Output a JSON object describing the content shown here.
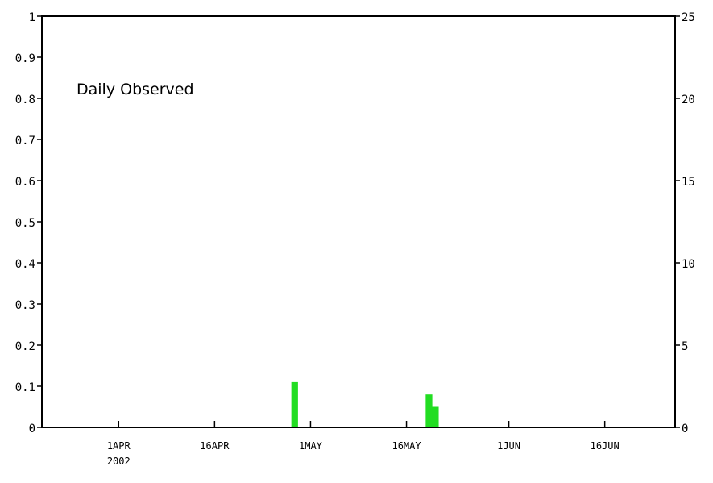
{
  "chart_data": {
    "type": "bar",
    "title": "Daily Observed",
    "colors": {
      "bar": "#22dd22",
      "axis": "#000000"
    },
    "x_axis": {
      "start": "2002-03-20",
      "end": "2002-06-27",
      "ticks": [
        {
          "date": "2002-04-01",
          "label": "1APR",
          "sublabel": "2002"
        },
        {
          "date": "2002-04-16",
          "label": "16APR",
          "sublabel": ""
        },
        {
          "date": "2002-05-01",
          "label": "1MAY",
          "sublabel": ""
        },
        {
          "date": "2002-05-16",
          "label": "16MAY",
          "sublabel": ""
        },
        {
          "date": "2002-06-01",
          "label": "1JUN",
          "sublabel": ""
        },
        {
          "date": "2002-06-16",
          "label": "16JUN",
          "sublabel": ""
        }
      ]
    },
    "y_left": {
      "min": 0,
      "max": 1,
      "ticks": [
        0,
        0.1,
        0.2,
        0.3,
        0.4,
        0.5,
        0.6,
        0.7,
        0.8,
        0.9,
        1
      ],
      "labels": [
        "0",
        "0.1",
        "0.2",
        "0.3",
        "0.4",
        "0.5",
        "0.6",
        "0.7",
        "0.8",
        "0.9",
        "1"
      ]
    },
    "y_right": {
      "min": 0,
      "max": 25,
      "ticks": [
        0,
        5,
        10,
        15,
        20,
        25
      ],
      "labels": [
        "0",
        "5",
        "10",
        "15",
        "20",
        "25"
      ]
    },
    "series": [
      {
        "points": [
          {
            "date": "2002-04-28",
            "value": 0.11
          },
          {
            "date": "2002-05-19",
            "value": 0.08
          },
          {
            "date": "2002-05-20",
            "value": 0.05
          }
        ]
      }
    ],
    "grid": false,
    "legend": "none"
  }
}
